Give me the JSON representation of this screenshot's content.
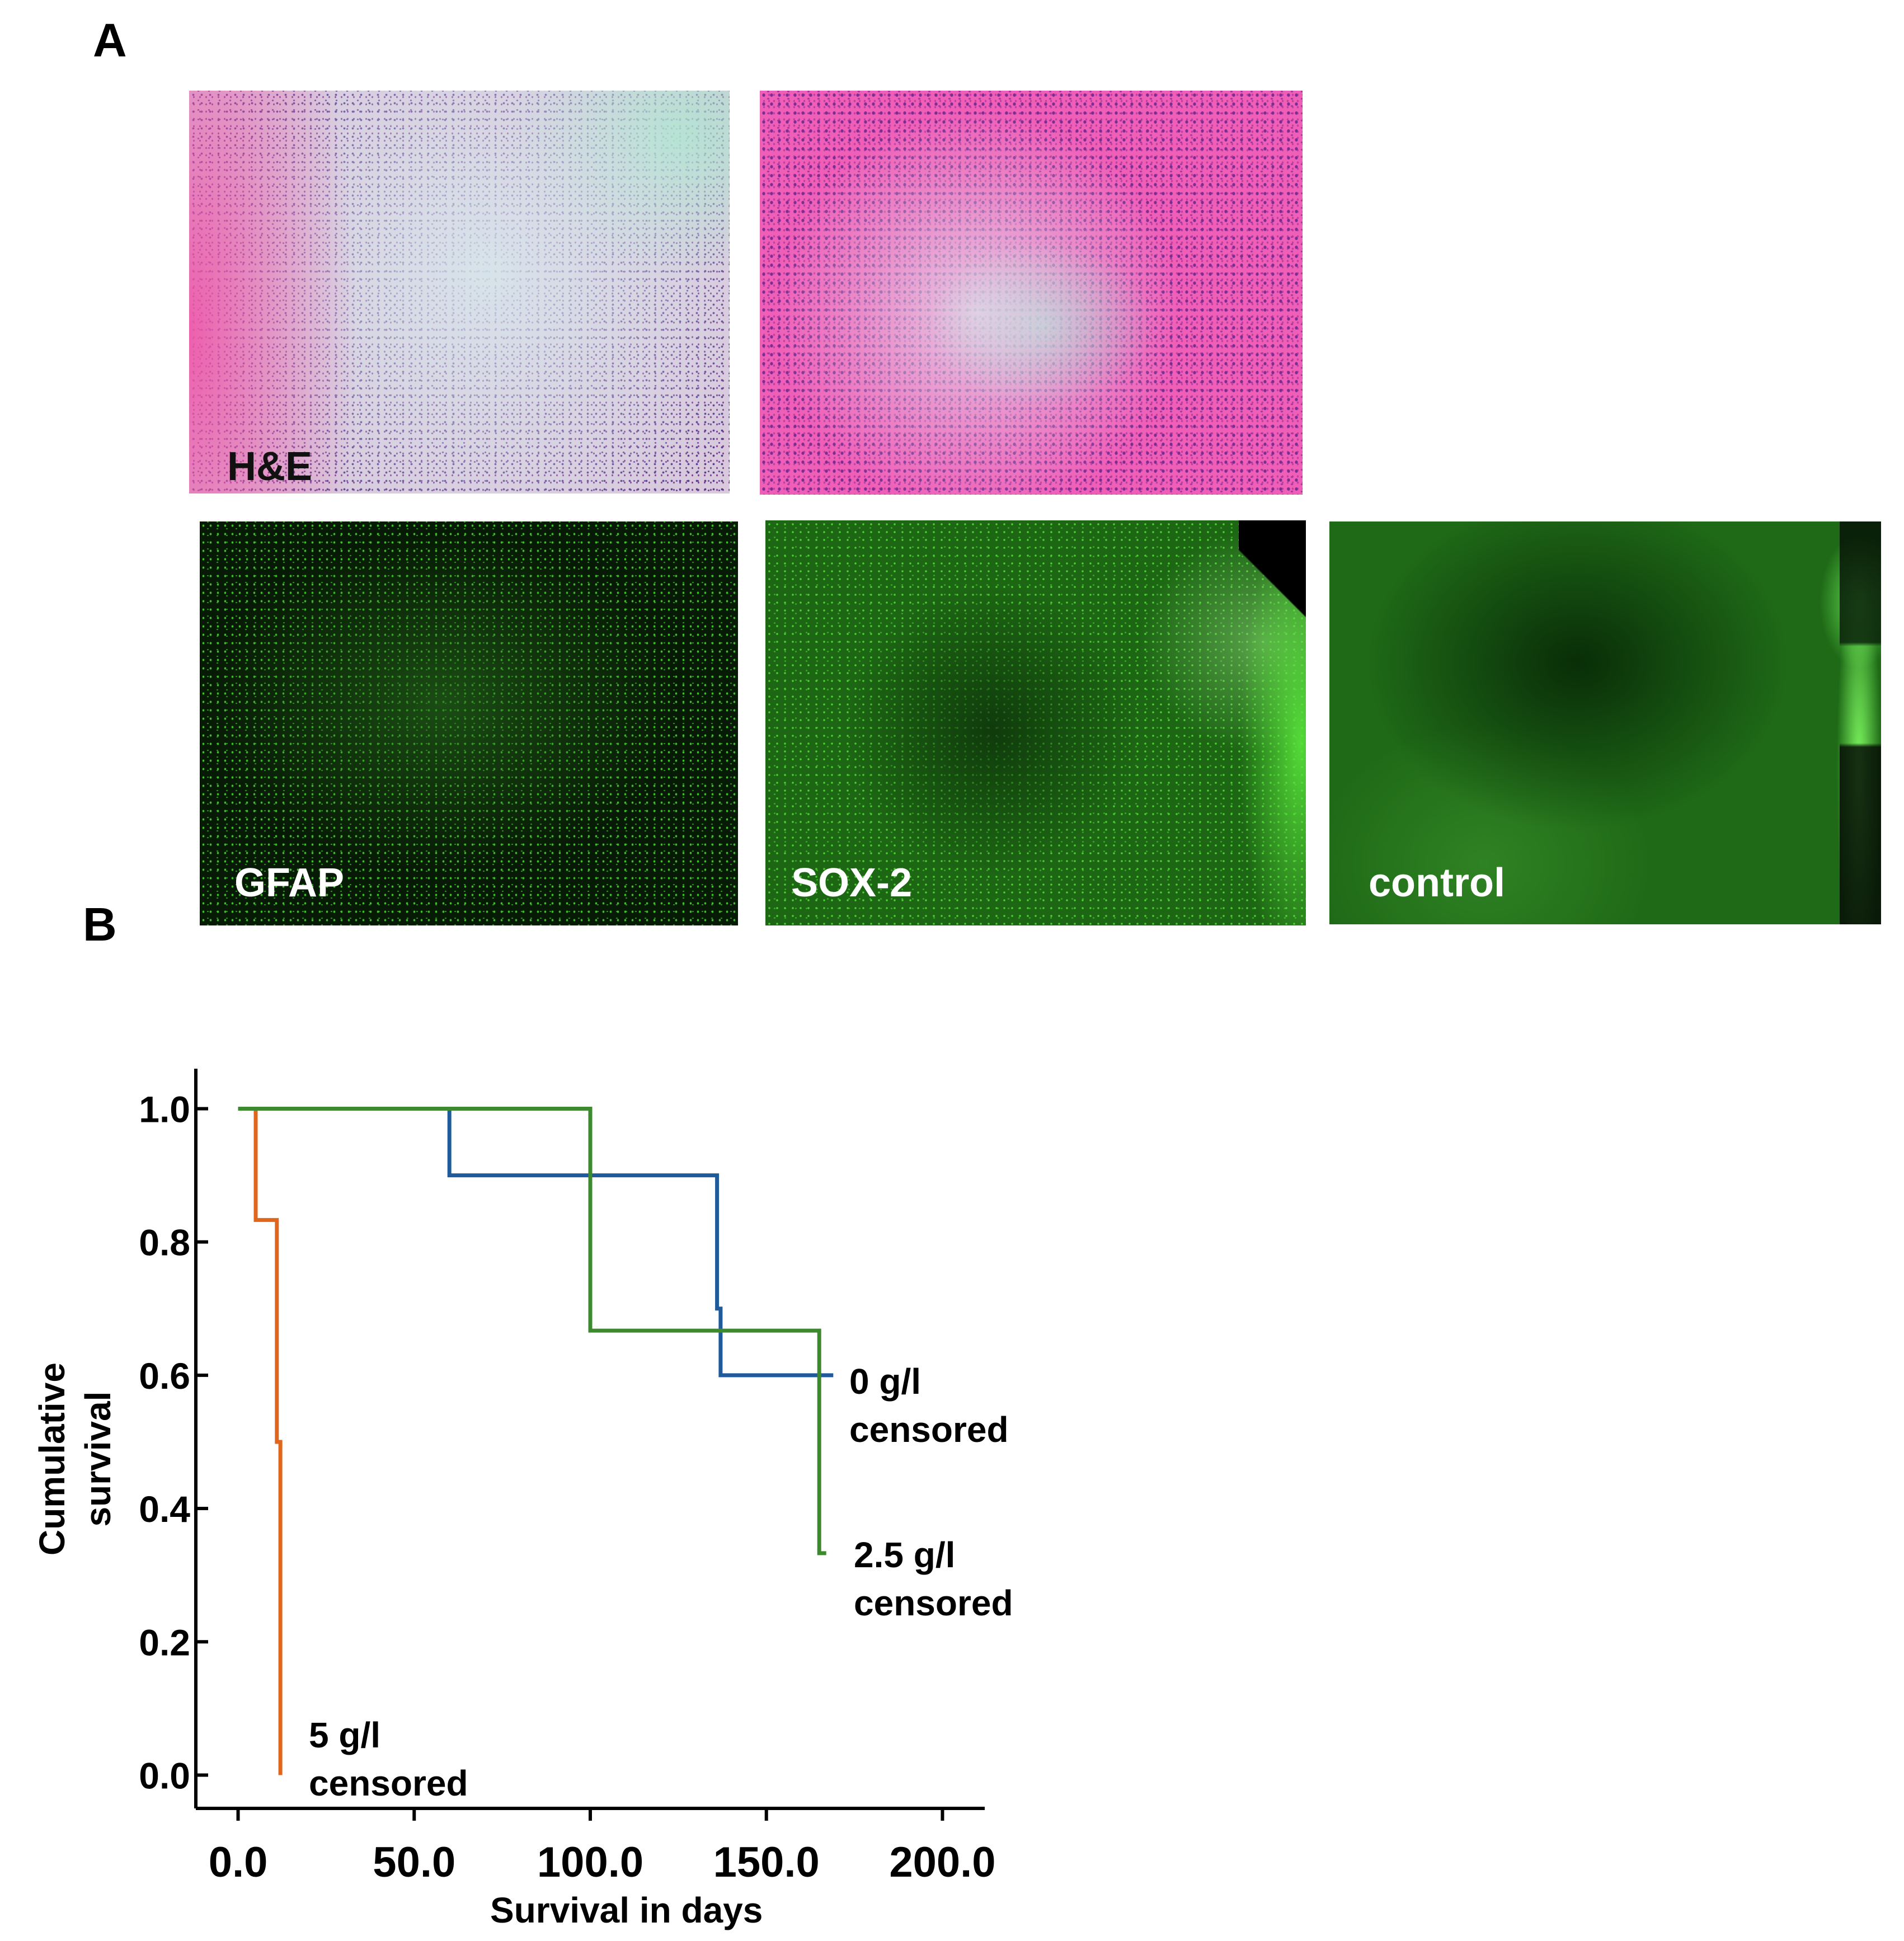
{
  "panels": {
    "a_letter": "A",
    "b_letter": "B"
  },
  "micrographs": {
    "he": {
      "label": "H&E",
      "stain": "hematoxylin-eosin"
    },
    "gfap": {
      "label": "GFAP"
    },
    "sox2": {
      "label": "SOX-2"
    },
    "control": {
      "label": "control"
    }
  },
  "chart_data": {
    "type": "line",
    "subtype": "kaplan-meier-step",
    "title": "",
    "xlabel": "Survival in days",
    "ylabel_lines": [
      "Cumulative",
      "survival"
    ],
    "xlim": [
      -12,
      212
    ],
    "ylim": [
      -0.05,
      1.06
    ],
    "xticks": [
      0,
      50,
      100,
      150,
      200
    ],
    "xtick_labels": [
      "0.0",
      "50.0",
      "100.0",
      "150.0",
      "200.0"
    ],
    "yticks": [
      0,
      0.2,
      0.4,
      0.6,
      0.8,
      1.0
    ],
    "ytick_labels": [
      "0.0",
      "0.2",
      "0.4",
      "0.6",
      "0.8",
      "1.0"
    ],
    "grid": false,
    "series": [
      {
        "label_lines": [
          "5 g/l",
          "censored"
        ],
        "color": "#e0661e",
        "points": [
          [
            0,
            1.0
          ],
          [
            5,
            1.0
          ],
          [
            5,
            0.833
          ],
          [
            11,
            0.833
          ],
          [
            11,
            0.5
          ],
          [
            12,
            0.5
          ],
          [
            12,
            0.0
          ]
        ]
      },
      {
        "label_lines": [
          "0 g/l",
          "censored"
        ],
        "color": "#1f5a9a",
        "points": [
          [
            0,
            1.0
          ],
          [
            60,
            1.0
          ],
          [
            60,
            0.9
          ],
          [
            136,
            0.9
          ],
          [
            136,
            0.7
          ],
          [
            137,
            0.7
          ],
          [
            137,
            0.6
          ],
          [
            169,
            0.6
          ]
        ]
      },
      {
        "label_lines": [
          "2.5 g/l",
          "censored"
        ],
        "color": "#3d8a2e",
        "points": [
          [
            0,
            1.0
          ],
          [
            100,
            1.0
          ],
          [
            100,
            0.667
          ],
          [
            165,
            0.667
          ],
          [
            165,
            0.333
          ],
          [
            167,
            0.333
          ]
        ]
      }
    ]
  }
}
